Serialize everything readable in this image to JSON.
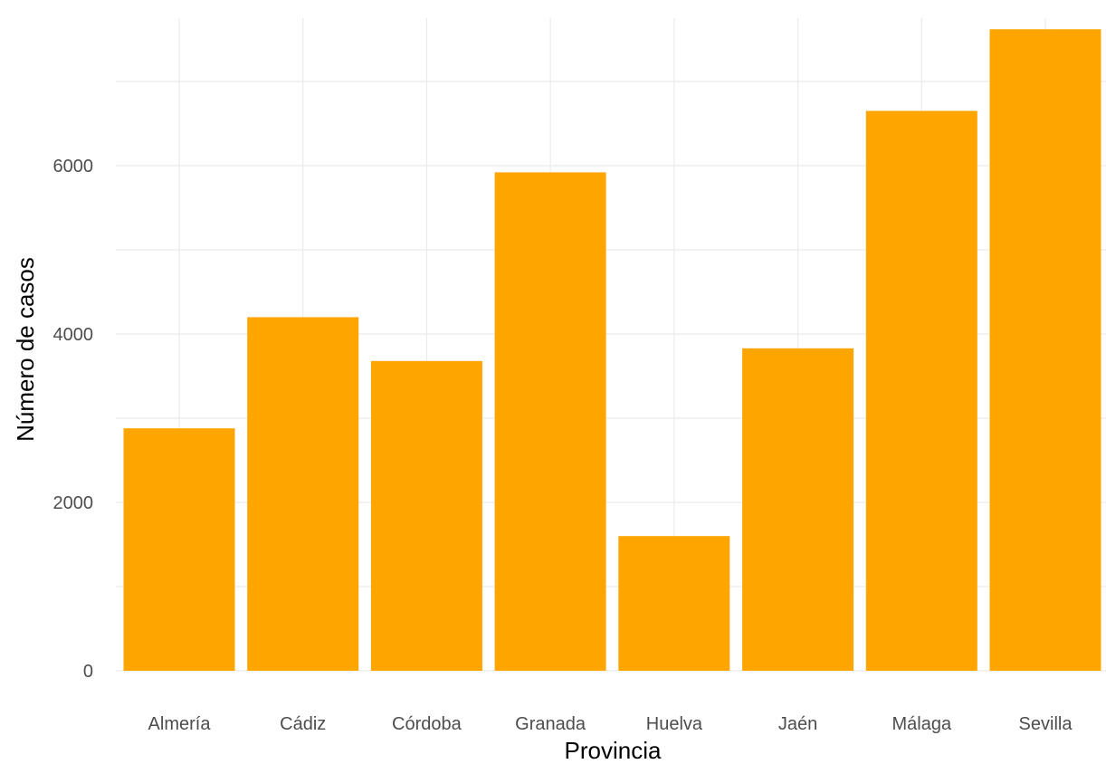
{
  "chart_data": {
    "type": "bar",
    "categories": [
      "Almería",
      "Cádiz",
      "Córdoba",
      "Granada",
      "Huelva",
      "Jaén",
      "Málaga",
      "Sevilla"
    ],
    "values": [
      2880,
      4200,
      3680,
      5920,
      1600,
      3830,
      6650,
      7620
    ],
    "title": "",
    "xlabel": "Provincia",
    "ylabel": "Número de casos",
    "ylim": [
      0,
      7620
    ],
    "yticks": [
      0,
      2000,
      4000,
      6000
    ],
    "ytick_labels": [
      "0",
      "2000",
      "4000",
      "6000"
    ],
    "grid": true,
    "bar_color": "#FFA500",
    "legend": "none"
  }
}
